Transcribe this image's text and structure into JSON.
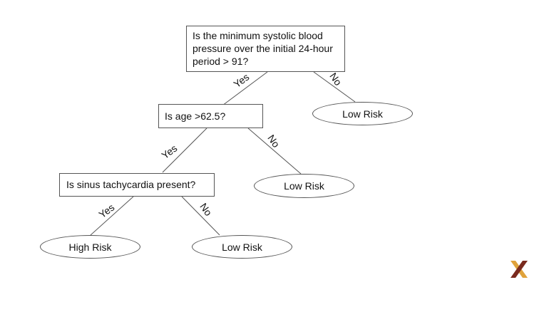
{
  "nodes": {
    "root_question": "Is the minimum systolic blood pressure over the initial 24-hour period > 91?",
    "age_question": "Is age >62.5?",
    "tachy_question": "Is sinus tachycardia present?",
    "low_risk_1": "Low Risk",
    "low_risk_2": "Low Risk",
    "low_risk_3": "Low Risk",
    "high_risk": "High Risk"
  },
  "edges": {
    "root_yes": "Yes",
    "root_no": "No",
    "age_yes": "Yes",
    "age_no": "No",
    "tachy_yes": "Yes",
    "tachy_no": "No"
  },
  "colors": {
    "logo_dark": "#7a2a1e",
    "logo_light": "#e0a33c"
  }
}
